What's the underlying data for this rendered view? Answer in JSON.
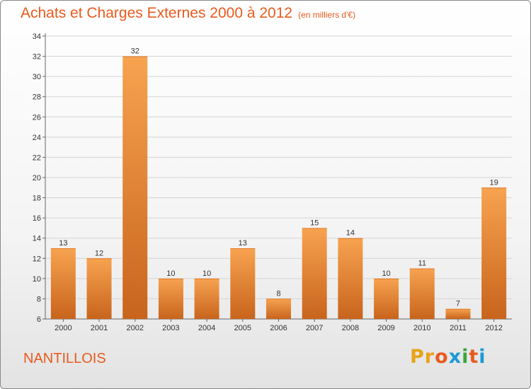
{
  "header": {
    "title": "Achats et Charges Externes 2000 à 2012",
    "subtitle": "(en milliers d'€)"
  },
  "footer": {
    "commune": "NANTILLOIS",
    "logo_text": "Proxiti",
    "logo_colors": [
      "#e8a317",
      "#e8a317",
      "#e85a1d",
      "#1a9ad6",
      "#3aa63a",
      "#e85a1d",
      "#1a9ad6"
    ]
  },
  "chart_data": {
    "type": "bar",
    "categories": [
      "2000",
      "2001",
      "2002",
      "2003",
      "2004",
      "2005",
      "2006",
      "2007",
      "2008",
      "2009",
      "2010",
      "2011",
      "2012"
    ],
    "values": [
      13,
      12,
      32,
      10,
      10,
      13,
      8,
      15,
      14,
      10,
      11,
      7,
      19
    ],
    "title": "Achats et Charges Externes 2000 à 2012",
    "ylim": [
      6,
      34
    ],
    "yticks": [
      6,
      8,
      10,
      12,
      14,
      16,
      18,
      20,
      22,
      24,
      26,
      28,
      30,
      32,
      34
    ],
    "grid": true,
    "bar_color_top": "#f7a350",
    "bar_color_bottom": "#c8641c"
  }
}
